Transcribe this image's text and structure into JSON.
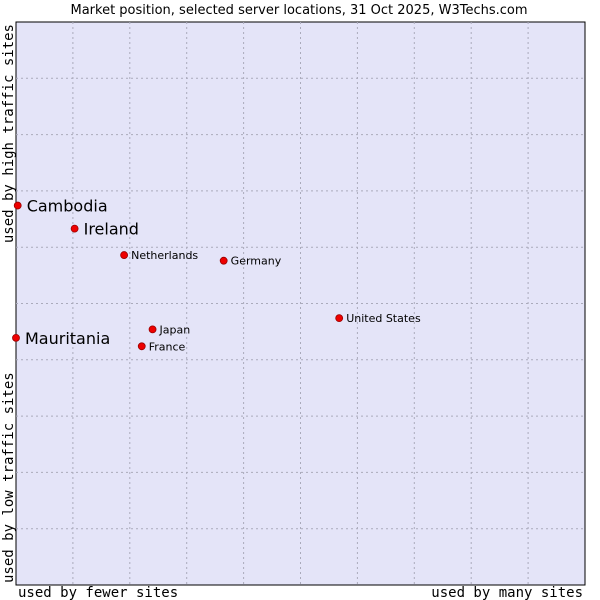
{
  "chart_data": {
    "type": "scatter",
    "title": "Market position, selected server locations, 31 Oct 2025, W3Techs.com",
    "xlabel_left": "used by fewer sites",
    "xlabel_right": "used by many sites",
    "ylabel_bottom": "used by low traffic sites",
    "ylabel_top": "used by high traffic sites",
    "xlim": [
      0,
      100
    ],
    "ylim": [
      0,
      100
    ],
    "grid": true,
    "colors": {
      "plot_background": "#e4e4f8",
      "point": "#ee0000",
      "point_edge": "#990000",
      "border": "#000000"
    },
    "points": [
      {
        "label": "Cambodia",
        "x": 0.3,
        "y": 67.4,
        "emphasis": true
      },
      {
        "label": "Ireland",
        "x": 10.3,
        "y": 63.3,
        "emphasis": true
      },
      {
        "label": "Mauritania",
        "x": 0.0,
        "y": 43.9,
        "emphasis": true
      },
      {
        "label": "Netherlands",
        "x": 19.0,
        "y": 58.6,
        "emphasis": false
      },
      {
        "label": "Germany",
        "x": 36.5,
        "y": 57.6,
        "emphasis": false
      },
      {
        "label": "United States",
        "x": 56.8,
        "y": 47.4,
        "emphasis": false
      },
      {
        "label": "Japan",
        "x": 24.0,
        "y": 45.4,
        "emphasis": false
      },
      {
        "label": "France",
        "x": 22.1,
        "y": 42.4,
        "emphasis": false
      }
    ]
  }
}
